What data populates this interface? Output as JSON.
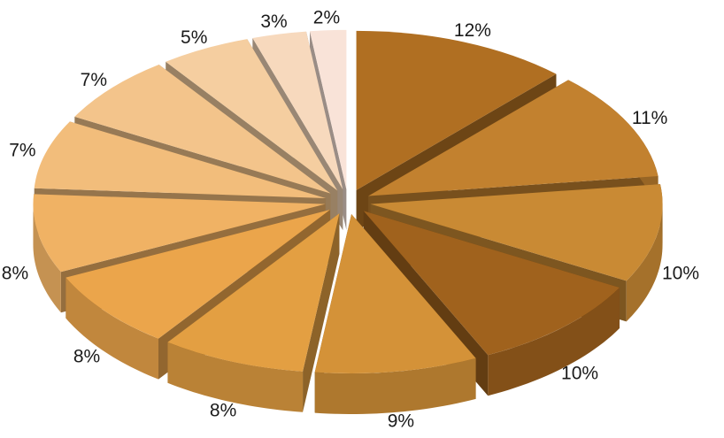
{
  "chart_data": {
    "type": "pie",
    "style": "3d-exploded",
    "values": [
      12,
      11,
      10,
      10,
      9,
      8,
      8,
      8,
      7,
      7,
      5,
      3,
      2
    ],
    "labels": [
      "12%",
      "11%",
      "10%",
      "10%",
      "9%",
      "8%",
      "8%",
      "8%",
      "7%",
      "7%",
      "5%",
      "3%",
      "2%"
    ],
    "colors": [
      "#b06f22",
      "#c2812f",
      "#c98a34",
      "#a0621d",
      "#d49238",
      "#e39f42",
      "#eba54b",
      "#f0b264",
      "#f2bd7b",
      "#f3c48b",
      "#f5cea0",
      "#f7d9bd",
      "#f9e3d8"
    ],
    "legend": "none"
  }
}
